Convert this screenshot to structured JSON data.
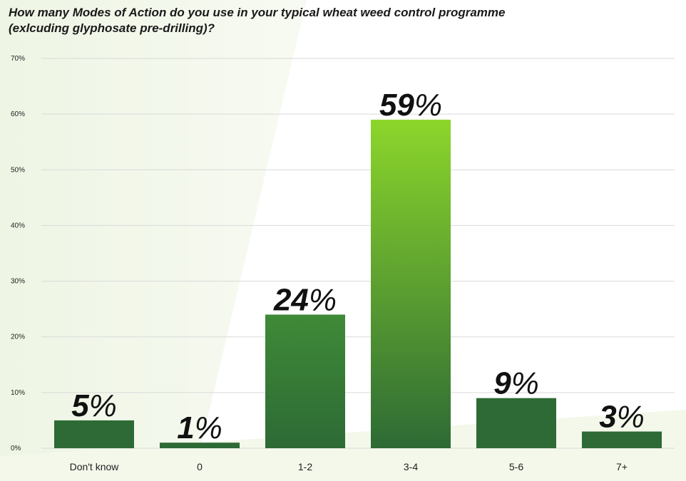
{
  "title_lines": [
    "How many Modes of Action do you use in your typical wheat weed control programme",
    "(exlcuding glyphosate pre-drilling)?"
  ],
  "colors": {
    "bar_dark": "#2d6a35",
    "bar_mid": "#3f8a38",
    "bar_highlight_top": "#8cd62b",
    "bar_highlight_bottom": "#2d6a35",
    "grid": "#d9d9d9",
    "background_tint": "#f1f6e8"
  },
  "chart_data": {
    "type": "bar",
    "title": "How many Modes of Action do you use in your typical wheat weed control programme (exlcuding glyphosate pre-drilling)?",
    "categories": [
      "Don't know",
      "0",
      "1-2",
      "3-4",
      "5-6",
      "7+"
    ],
    "values": [
      5,
      1,
      24,
      59,
      9,
      3
    ],
    "data_labels": [
      {
        "num": "5",
        "unit": "%"
      },
      {
        "num": "1",
        "unit": "%"
      },
      {
        "num": "24",
        "unit": "%"
      },
      {
        "num": "59",
        "unit": "%"
      },
      {
        "num": "9",
        "unit": "%"
      },
      {
        "num": "3",
        "unit": "%"
      }
    ],
    "ylim": [
      0,
      70
    ],
    "yticks": [
      0,
      10,
      20,
      30,
      40,
      50,
      60,
      70
    ],
    "ytick_labels": [
      "0%",
      "10%",
      "20%",
      "30%",
      "40%",
      "50%",
      "60%",
      "70%"
    ],
    "xlabel": "",
    "ylabel": "",
    "grid": true,
    "highlight_category": "3-4"
  }
}
